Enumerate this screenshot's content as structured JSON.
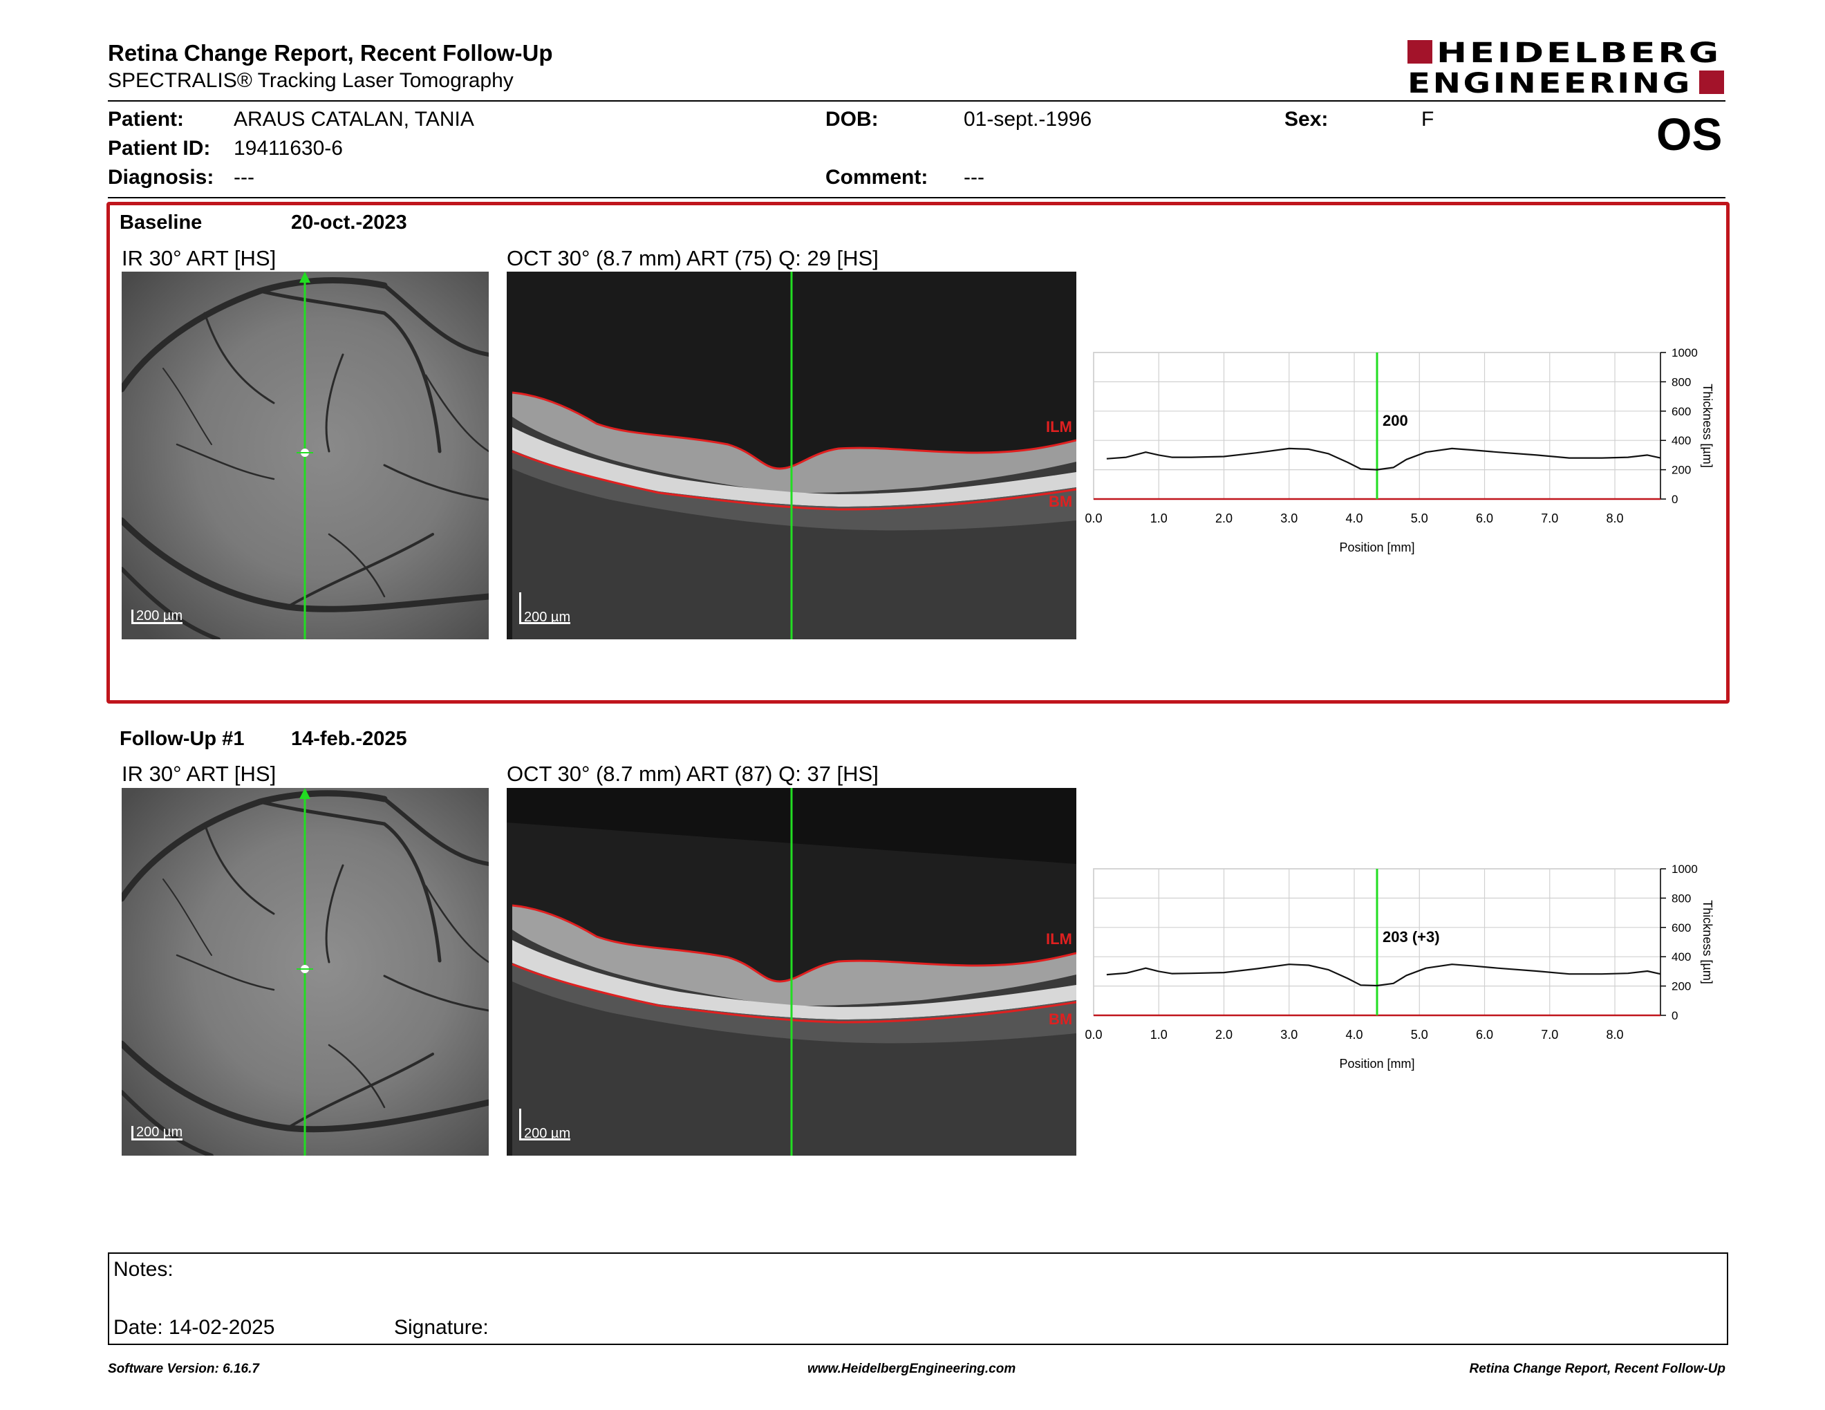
{
  "header": {
    "title": "Retina Change Report, Recent Follow-Up",
    "subtitle": "SPECTRALIS® Tracking Laser Tomography",
    "logo_line1": "HEIDELBERG",
    "logo_line2": "ENGINEERING",
    "eye": "OS"
  },
  "patient": {
    "patient_label": "Patient:",
    "patient_value": "ARAUS CATALAN, TANIA",
    "dob_label": "DOB:",
    "dob_value": "01-sept.-1996",
    "sex_label": "Sex:",
    "sex_value": "F",
    "id_label": "Patient ID:",
    "id_value": "19411630-6",
    "diagnosis_label": "Diagnosis:",
    "diagnosis_value": "---",
    "comment_label": "Comment:",
    "comment_value": "---"
  },
  "sections": [
    {
      "name": "Baseline",
      "date": "20-oct.-2023",
      "ir_label": "IR 30° ART [HS]",
      "oct_label": "OCT 30° (8.7 mm) ART (75) Q: 29 [HS]",
      "scale_ir": "200 µm",
      "scale_oct": "200 µm",
      "ilm": "ILM",
      "bm": "BM",
      "thickness_label": "200"
    },
    {
      "name": "Follow-Up #1",
      "date": "14-feb.-2025",
      "ir_label": "IR 30° ART [HS]",
      "oct_label": "OCT 30° (8.7 mm) ART (87) Q: 37 [HS]",
      "scale_ir": "200 µm",
      "scale_oct": "200 µm",
      "ilm": "ILM",
      "bm": "BM",
      "thickness_label": "203 (+3)"
    }
  ],
  "chart_data": [
    {
      "type": "line",
      "xlabel": "Position [mm]",
      "ylabel": "Thickness [µm]",
      "xlim": [
        0,
        8.7
      ],
      "ylim": [
        0,
        1000
      ],
      "xticks": [
        "0.0",
        "1.0",
        "2.0",
        "3.0",
        "4.0",
        "5.0",
        "6.0",
        "7.0",
        "8.0"
      ],
      "yticks": [
        "0",
        "200",
        "400",
        "600",
        "800",
        "1000"
      ],
      "marker_x": 4.35,
      "x": [
        0.2,
        0.5,
        0.8,
        1.0,
        1.2,
        1.5,
        2.0,
        2.5,
        3.0,
        3.3,
        3.6,
        3.9,
        4.1,
        4.35,
        4.6,
        4.8,
        5.1,
        5.5,
        5.8,
        6.2,
        6.8,
        7.3,
        7.8,
        8.2,
        8.5,
        8.7
      ],
      "y": [
        275,
        285,
        320,
        300,
        285,
        285,
        290,
        315,
        345,
        340,
        310,
        250,
        205,
        200,
        215,
        270,
        320,
        345,
        335,
        320,
        300,
        280,
        280,
        285,
        300,
        280
      ]
    },
    {
      "type": "line",
      "xlabel": "Position [mm]",
      "ylabel": "Thickness [µm]",
      "xlim": [
        0,
        8.7
      ],
      "ylim": [
        0,
        1000
      ],
      "xticks": [
        "0.0",
        "1.0",
        "2.0",
        "3.0",
        "4.0",
        "5.0",
        "6.0",
        "7.0",
        "8.0"
      ],
      "yticks": [
        "0",
        "200",
        "400",
        "600",
        "800",
        "1000"
      ],
      "marker_x": 4.35,
      "x": [
        0.2,
        0.5,
        0.8,
        1.0,
        1.2,
        1.5,
        2.0,
        2.5,
        3.0,
        3.3,
        3.6,
        3.9,
        4.1,
        4.35,
        4.6,
        4.8,
        5.1,
        5.5,
        5.8,
        6.2,
        6.8,
        7.3,
        7.8,
        8.2,
        8.5,
        8.7
      ],
      "y": [
        278,
        288,
        322,
        300,
        285,
        287,
        292,
        318,
        348,
        342,
        312,
        252,
        206,
        203,
        218,
        272,
        322,
        348,
        338,
        322,
        302,
        282,
        282,
        287,
        302,
        282
      ]
    }
  ],
  "notes": {
    "notes_label": "Notes:",
    "date_label": "Date: 14-02-2025",
    "signature_label": "Signature:"
  },
  "footer": {
    "left": "Software Version: 6.16.7",
    "center": "www.HeidelbergEngineering.com",
    "right": "Retina Change Report, Recent Follow-Up"
  },
  "colors": {
    "accent_red": "#c0151c",
    "scan_green": "#22dd22",
    "brand_red": "#a3132a"
  }
}
